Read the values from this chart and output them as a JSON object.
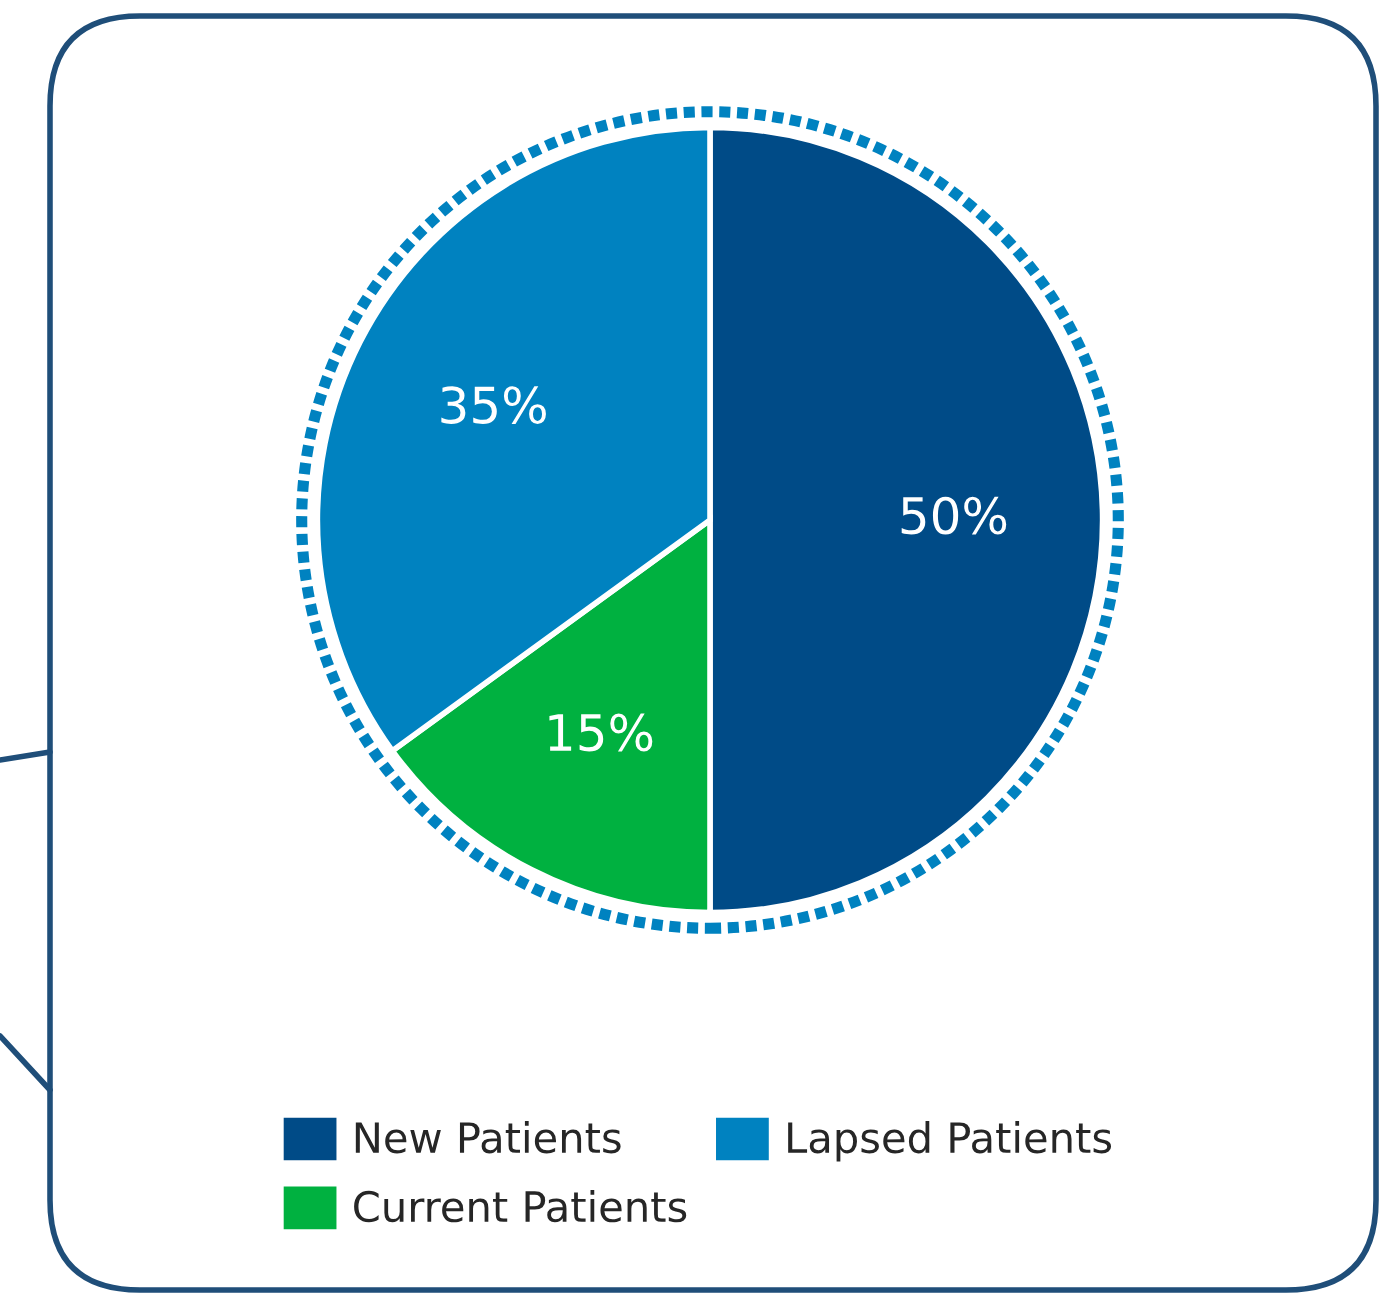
{
  "chart_data": {
    "type": "pie",
    "categories": [
      "New Patients",
      "Current Patients",
      "Lapsed Patients"
    ],
    "values": [
      50,
      15,
      35
    ],
    "colors": [
      "#004b87",
      "#00b140",
      "#0082c0"
    ],
    "value_labels": [
      "50%",
      "15%",
      "35%"
    ],
    "legend": "bottom"
  }
}
